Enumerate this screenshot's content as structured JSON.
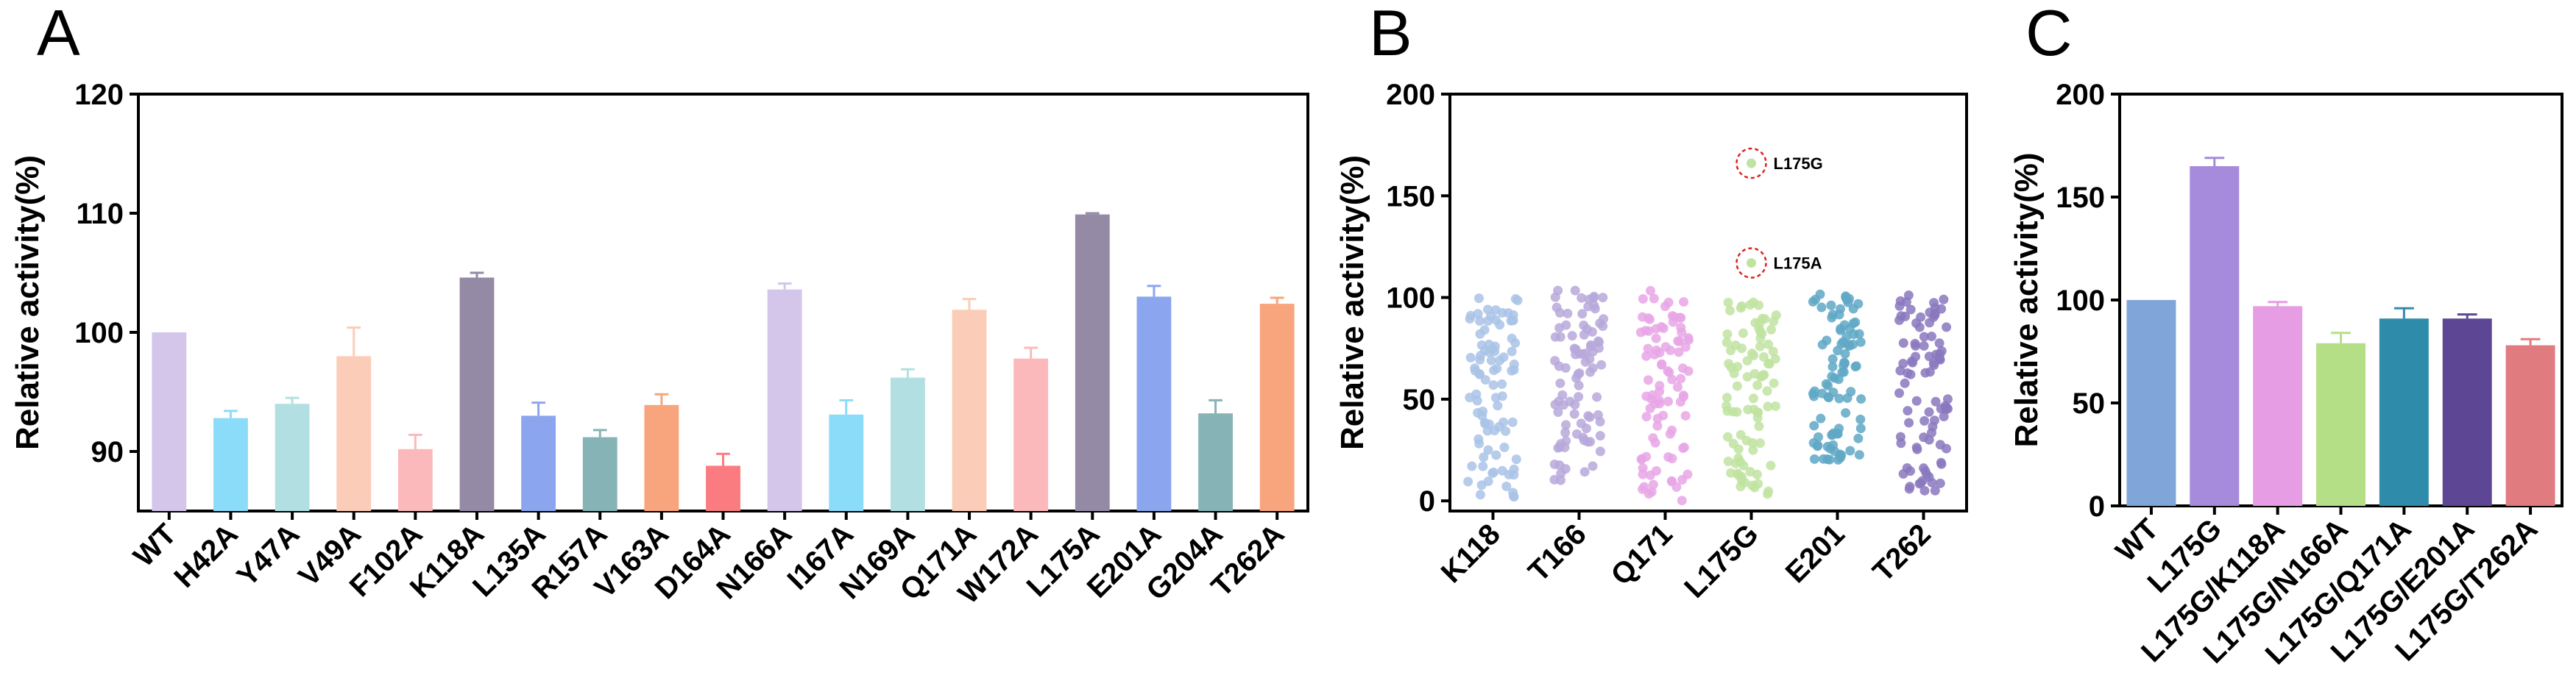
{
  "chart_data": [
    {
      "panel": "A",
      "type": "bar",
      "title": "",
      "xlabel": "",
      "ylabel": "Relative activity(%)",
      "ylim": [
        85,
        120
      ],
      "yticks": [
        90,
        100,
        110,
        120
      ],
      "categories": [
        "WT",
        "H42A",
        "Y47A",
        "V49A",
        "F102A",
        "K118A",
        "L135A",
        "R157A",
        "V163A",
        "D164A",
        "N166A",
        "I167A",
        "N169A",
        "Q171A",
        "W172A",
        "L175A",
        "E201A",
        "G204A",
        "T262A"
      ],
      "values": [
        100,
        92.8,
        94.0,
        98.0,
        90.2,
        104.6,
        93.0,
        91.2,
        93.9,
        88.8,
        103.6,
        93.1,
        96.2,
        101.9,
        97.8,
        109.9,
        103.0,
        93.2,
        102.4
      ],
      "errors": [
        0,
        0.6,
        0.5,
        2.4,
        1.2,
        0.4,
        1.1,
        0.6,
        0.9,
        1.0,
        0.5,
        1.2,
        0.7,
        0.9,
        0.9,
        0.1,
        0.9,
        1.1,
        0.5
      ],
      "colors": [
        "#D3C6EA",
        "#8ADCF9",
        "#B2E0E2",
        "#FBCDB8",
        "#FBB9BB",
        "#948AA6",
        "#8BA6EE",
        "#86B3B6",
        "#F8A47C",
        "#FA7C80",
        "#D3C6EA",
        "#8ADCF9",
        "#B2E0E2",
        "#FBCDB8",
        "#FBB9BB",
        "#948AA6",
        "#8BA6EE",
        "#86B3B6",
        "#F8A47C"
      ]
    },
    {
      "panel": "B",
      "type": "scatter",
      "title": "",
      "xlabel": "",
      "ylabel": "Relative activity(%)",
      "ylim": [
        -5,
        200
      ],
      "yticks": [
        0,
        50,
        100,
        150,
        200
      ],
      "categories": [
        "K118",
        "T166",
        "Q171",
        "L175G",
        "E201",
        "T262"
      ],
      "colors": [
        "#A9C3E6",
        "#B7A8DA",
        "#E8A6E6",
        "#BFE3A0",
        "#5FA8C6",
        "#8A78BE"
      ],
      "points_per_group": 90,
      "ranges": [
        [
          2,
          100
        ],
        [
          10,
          104
        ],
        [
          0,
          104
        ],
        [
          2,
          98
        ],
        [
          20,
          104
        ],
        [
          5,
          103
        ]
      ],
      "annotations": [
        {
          "label": "L175G",
          "x": "L175G",
          "y": 166
        },
        {
          "label": "L175A",
          "x": "L175G",
          "y": 117
        }
      ]
    },
    {
      "panel": "C",
      "type": "bar",
      "title": "",
      "xlabel": "",
      "ylabel": "Relative activity(%)",
      "ylim": [
        0,
        200
      ],
      "yticks": [
        0,
        50,
        100,
        150,
        200
      ],
      "categories": [
        "WT",
        "L175G",
        "L175G/K118A",
        "L175G/N166A",
        "L175G/Q171A",
        "L175G/E201A",
        "L175G/T262A"
      ],
      "values": [
        100,
        165,
        97,
        79,
        91,
        91,
        78
      ],
      "errors": [
        0,
        4,
        2,
        5,
        5,
        2,
        3
      ],
      "colors": [
        "#7FA5D9",
        "#A68ADB",
        "#E79DE3",
        "#B5DF86",
        "#2E8CAA",
        "#5D4795",
        "#E07B80"
      ]
    }
  ],
  "panel_labels": [
    "A",
    "B",
    "C"
  ]
}
